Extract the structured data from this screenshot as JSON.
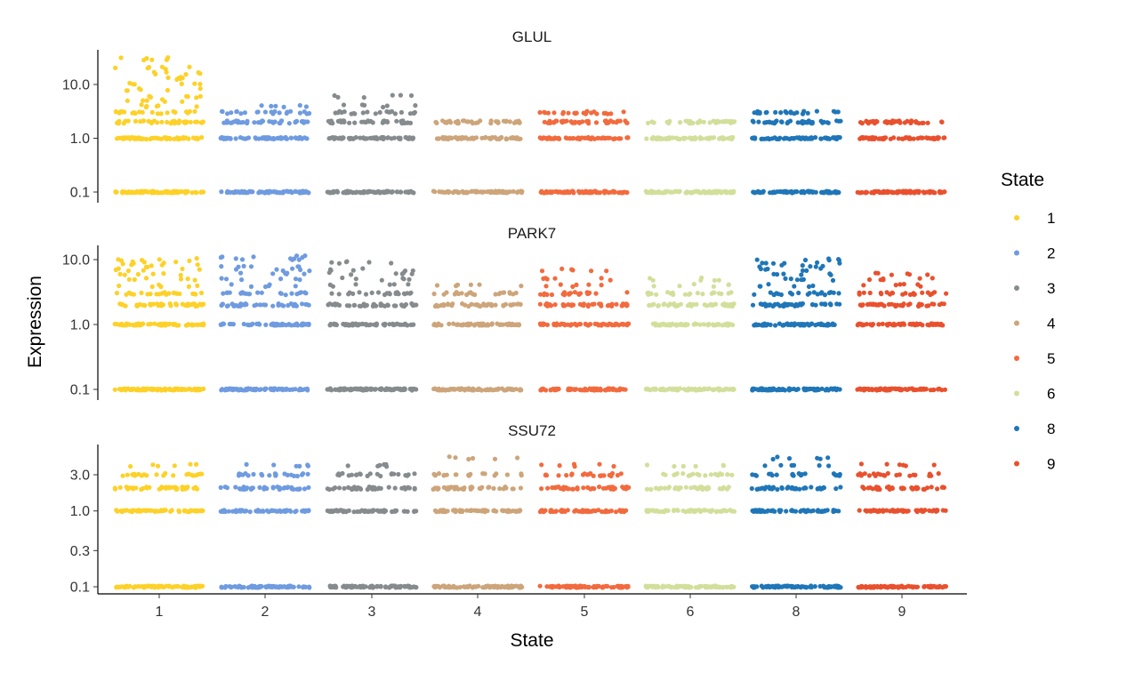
{
  "chart_data": {
    "type": "scatter",
    "xlabel": "State",
    "ylabel": "Expression",
    "categories": [
      "1",
      "2",
      "3",
      "4",
      "5",
      "6",
      "8",
      "9"
    ],
    "colors": {
      "1": "#FDD128",
      "2": "#6F9BE0",
      "3": "#868B8E",
      "4": "#CDA57A",
      "5": "#F26B3E",
      "6": "#D2DF9B",
      "8": "#1F76B8",
      "9": "#E9512E"
    },
    "y_scale": "log",
    "grid": false,
    "legend": {
      "title": "State",
      "position": "right",
      "entries": [
        "1",
        "2",
        "3",
        "4",
        "5",
        "6",
        "8",
        "9"
      ]
    },
    "panels": [
      {
        "title": "GLUL",
        "ylim": [
          0.09,
          40
        ],
        "yticks": [
          0.1,
          1.0,
          10.0
        ],
        "ytick_labels": [
          "0.1",
          "1.0",
          "10.0"
        ],
        "series": [
          {
            "state": "1",
            "levels": [
              0.1,
              1,
              2,
              3,
              4,
              5,
              6,
              8,
              10,
              13,
              16,
              20,
              30
            ]
          },
          {
            "state": "2",
            "levels": [
              0.1,
              1,
              2,
              3,
              4
            ]
          },
          {
            "state": "3",
            "levels": [
              0.1,
              1,
              2,
              3,
              4,
              6
            ]
          },
          {
            "state": "4",
            "levels": [
              0.1,
              1,
              2
            ]
          },
          {
            "state": "5",
            "levels": [
              0.1,
              1,
              2,
              3
            ]
          },
          {
            "state": "6",
            "levels": [
              0.1,
              1,
              2
            ]
          },
          {
            "state": "8",
            "levels": [
              0.1,
              1,
              2,
              3
            ]
          },
          {
            "state": "9",
            "levels": [
              0.1,
              1,
              2
            ]
          }
        ]
      },
      {
        "title": "PARK7",
        "ylim": [
          0.09,
          13
        ],
        "yticks": [
          0.1,
          1.0,
          10.0
        ],
        "ytick_labels": [
          "0.1",
          "1.0",
          "10.0"
        ],
        "series": [
          {
            "state": "1",
            "levels": [
              0.1,
              1,
              2,
              3,
              4,
              5,
              6,
              7,
              8,
              9,
              10
            ]
          },
          {
            "state": "2",
            "levels": [
              0.1,
              1,
              2,
              3,
              4,
              5,
              6,
              7,
              8,
              10,
              11
            ]
          },
          {
            "state": "3",
            "levels": [
              0.1,
              1,
              2,
              3,
              4,
              5,
              6,
              7,
              9
            ]
          },
          {
            "state": "4",
            "levels": [
              0.1,
              1,
              2,
              3,
              4
            ]
          },
          {
            "state": "5",
            "levels": [
              0.1,
              1,
              2,
              3,
              4,
              5,
              7
            ]
          },
          {
            "state": "6",
            "levels": [
              0.1,
              1,
              2,
              3,
              4,
              5
            ]
          },
          {
            "state": "8",
            "levels": [
              0.1,
              1,
              2,
              3,
              4,
              5,
              6,
              7,
              8,
              9,
              10
            ]
          },
          {
            "state": "9",
            "levels": [
              0.1,
              1,
              2,
              3,
              4,
              5,
              6
            ]
          }
        ]
      },
      {
        "title": "SSU72",
        "ylim": [
          0.09,
          6
        ],
        "yticks": [
          0.1,
          0.3,
          1.0,
          3.0
        ],
        "ytick_labels": [
          "0.1",
          "0.3",
          "1.0",
          "3.0"
        ],
        "series": [
          {
            "state": "1",
            "levels": [
              0.1,
              1,
              2,
              3,
              4
            ]
          },
          {
            "state": "2",
            "levels": [
              0.1,
              1,
              2,
              3,
              4
            ]
          },
          {
            "state": "3",
            "levels": [
              0.1,
              1,
              2,
              3,
              4
            ]
          },
          {
            "state": "4",
            "levels": [
              0.1,
              1,
              2,
              3,
              5
            ]
          },
          {
            "state": "5",
            "levels": [
              0.1,
              1,
              2,
              3,
              4
            ]
          },
          {
            "state": "6",
            "levels": [
              0.1,
              1,
              2,
              3,
              4
            ]
          },
          {
            "state": "8",
            "levels": [
              0.1,
              1,
              2,
              3,
              4,
              5
            ]
          },
          {
            "state": "9",
            "levels": [
              0.1,
              1,
              2,
              3,
              4
            ]
          }
        ]
      }
    ]
  }
}
